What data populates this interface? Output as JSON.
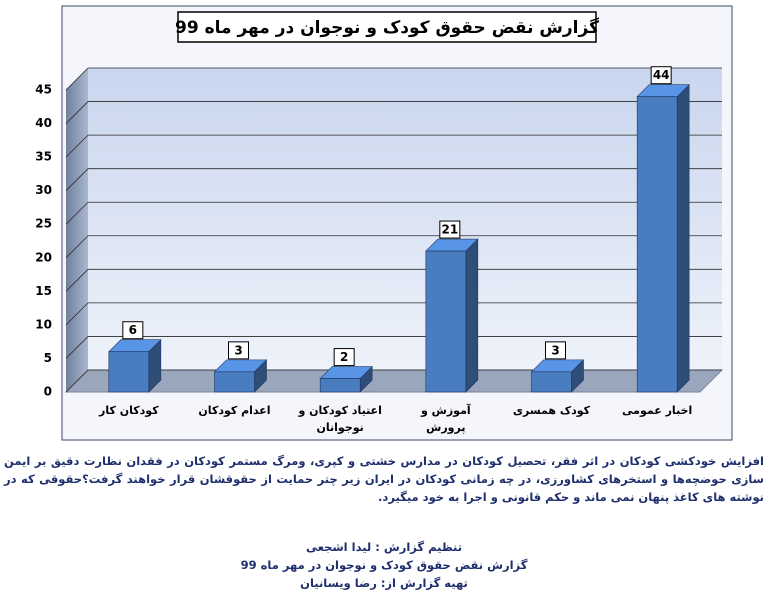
{
  "chart_data": {
    "type": "bar3d",
    "title": "گزارش نقض حقوق کودک و نوجوان در مهر ماه 99",
    "categories": [
      "کودکان کار",
      "اعدام کودکان",
      "اعتیاد کودکان و نوجوانان",
      "آموزش و پرورش",
      "کودک همسری",
      "اخبار عمومی"
    ],
    "values": [
      6,
      3,
      2,
      21,
      3,
      44
    ],
    "color": "#4a7cc0",
    "ylim": [
      0,
      45
    ],
    "yticks": [
      0,
      5,
      10,
      15,
      20,
      25,
      30,
      35,
      40,
      45
    ],
    "grid": true,
    "caption": "افزایش خودکشی کودکان در اثر فقر، تحصیل کودکان در مدارس خشتی و کپری، ومرگ  مستمر کودکان در فقدان نظارت دقیق بر ایمن سازی حوضچه‌ها و استخرهای کشاورزی، در چه زمانی کودکان در ایران زیر چتر حمایت از حقوقشان قرار خواهند گرفت؟حقوقی که در نوشته های کاغذ پنهان نمی ماند و حکم قانونی و اجرا به خود میگیرد.",
    "credits": [
      "تنظیم گزارش : لیدا اشجعی",
      "گزارش نقض حقوق کودک و نوجوان در مهر ماه 99",
      "تهیه گزارش از: رضا ویسانیان"
    ]
  }
}
